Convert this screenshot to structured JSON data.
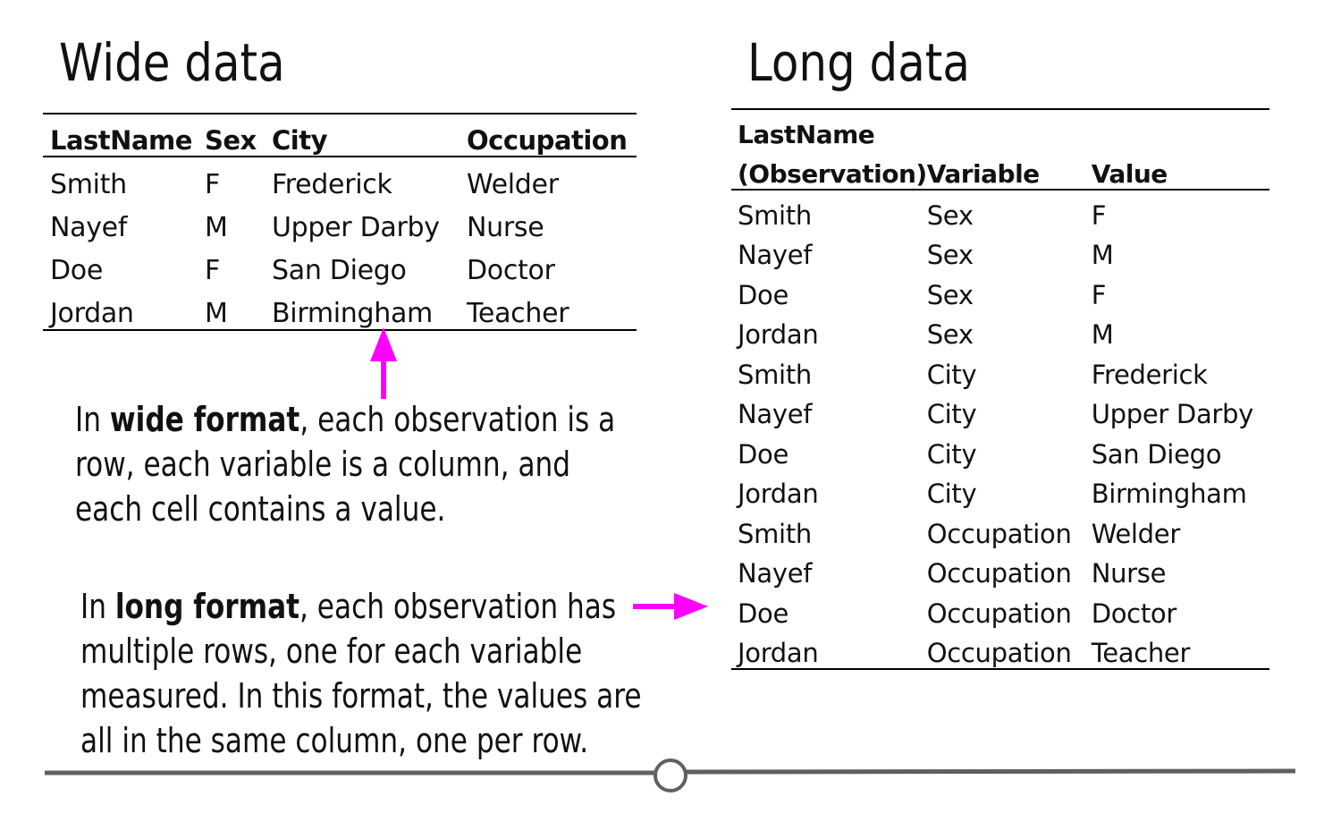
{
  "wide": {
    "title": "Wide data",
    "headers": [
      "LastName",
      "Sex",
      "City",
      "Occupation"
    ],
    "rows": [
      [
        "Smith",
        "F",
        "Frederick",
        "Welder"
      ],
      [
        "Nayef",
        "M",
        "Upper Darby",
        "Nurse"
      ],
      [
        "Doe",
        "F",
        "San Diego",
        "Doctor"
      ],
      [
        "Jordan",
        "M",
        "Birmingham",
        "Teacher"
      ]
    ]
  },
  "long": {
    "title": "Long data",
    "header_line1": "LastName",
    "headers": [
      "(Observation)",
      "Variable",
      "Value"
    ],
    "rows": [
      [
        "Smith",
        "Sex",
        "F"
      ],
      [
        "Nayef",
        "Sex",
        "M"
      ],
      [
        "Doe",
        "Sex",
        "F"
      ],
      [
        "Jordan",
        "Sex",
        "M"
      ],
      [
        "Smith",
        "City",
        "Frederick"
      ],
      [
        "Nayef",
        "City",
        "Upper Darby"
      ],
      [
        "Doe",
        "City",
        "San Diego"
      ],
      [
        "Jordan",
        "City",
        "Birmingham"
      ],
      [
        "Smith",
        "Occupation",
        "Welder"
      ],
      [
        "Nayef",
        "Occupation",
        "Nurse"
      ],
      [
        "Doe",
        "Occupation",
        "Doctor"
      ],
      [
        "Jordan",
        "Occupation",
        "Teacher"
      ]
    ]
  },
  "notes": {
    "wide": {
      "prefix": "In ",
      "bold": "wide format",
      "line1_rest": ", each observation is a",
      "line2": "row, each variable is a column, and",
      "line3": "each cell contains a value."
    },
    "long": {
      "prefix": "In ",
      "bold": "long format",
      "line1_rest": ", each observation has",
      "line2": "multiple rows, one for each variable",
      "line3": "measured. In this format, the values are",
      "line4": "all in the same column, one per row."
    }
  },
  "colors": {
    "arrow": "#ff00ff",
    "footer_line": "#606060",
    "text": "#111111"
  }
}
